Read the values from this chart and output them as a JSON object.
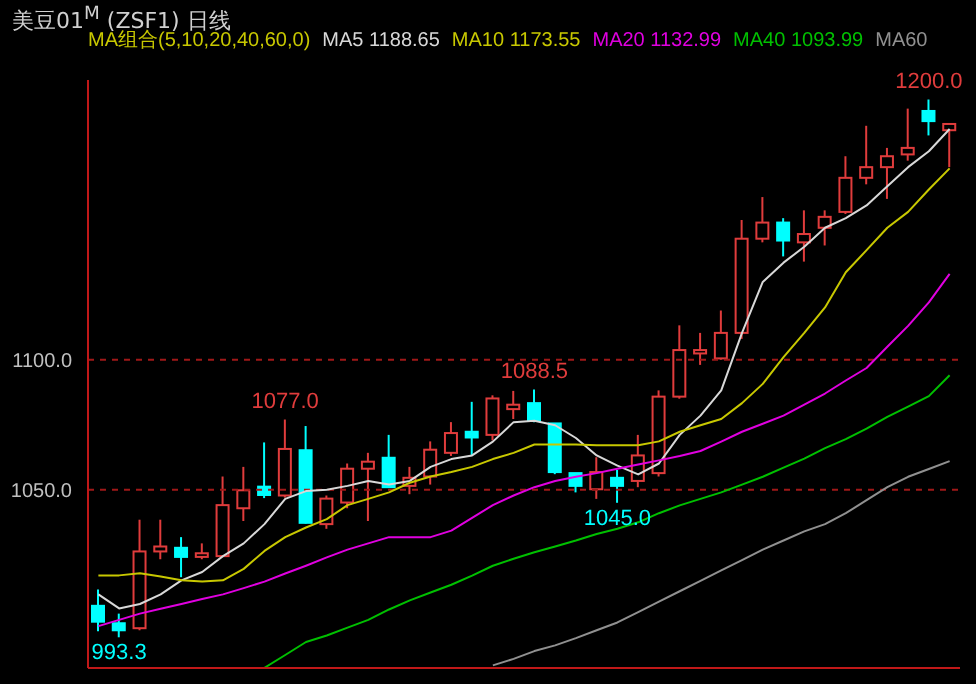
{
  "chart_data": {
    "type": "candlestick",
    "title": "美豆01$^{M}$ (ZSF1)  日线",
    "legend_title": "MA组合(5,10,20,40,60,0)",
    "categories": [
      null,
      null,
      null,
      null,
      null,
      null,
      null,
      null,
      null,
      null,
      null,
      null,
      null,
      null,
      null,
      null,
      null,
      null,
      null,
      null,
      null,
      null,
      null,
      null,
      null,
      null,
      null,
      null,
      null,
      null,
      null,
      null,
      null,
      null,
      null,
      null,
      null,
      null,
      null,
      null,
      null,
      null
    ],
    "colors": [
      "#00ffff",
      "#00ffff",
      "#e03c3c",
      "#e03c3c",
      "#00ffff",
      "#e03c3c",
      "#e03c3c",
      "#e03c3c",
      "#00ffff",
      "#e03c3c",
      "#00ffff",
      "#e03c3c",
      "#e03c3c",
      "#e03c3c",
      "#00ffff",
      "#e03c3c",
      "#e03c3c",
      "#e03c3c",
      "#00ffff",
      "#e03c3c",
      "#e03c3c",
      "#00ffff",
      "#00ffff",
      "#00ffff",
      "#e03c3c",
      "#00ffff",
      "#e03c3c",
      "#e03c3c",
      "#e03c3c",
      "#e03c3c",
      "#e03c3c",
      "#e03c3c",
      "#e03c3c",
      "#00ffff",
      "#e03c3c",
      "#e03c3c",
      "#e03c3c",
      "#e03c3c",
      "#e03c3c",
      "#e03c3c",
      "#00ffff",
      "#e03c3c"
    ],
    "ohlc": [
      [
        1005.4,
        1011.7,
        995.6,
        999.3
      ],
      [
        998.7,
        1002.4,
        993.3,
        996
      ],
      [
        996.8,
        1038.5,
        996,
        1026.3
      ],
      [
        1026.3,
        1038.5,
        1023.3,
        1028.2
      ],
      [
        1027.7,
        1031.8,
        1016.4,
        1024.2
      ],
      [
        1024.2,
        1029.4,
        1023.3,
        1025.6
      ],
      [
        1024.5,
        1055.1,
        1024.5,
        1044.1
      ],
      [
        1042.9,
        1058.8,
        1038,
        1049.8
      ],
      [
        1051.2,
        1068.2,
        1046.8,
        1048
      ],
      [
        1047.8,
        1077,
        1047,
        1065.7
      ],
      [
        1065.2,
        1074.5,
        1037,
        1037.3
      ],
      [
        1036.8,
        1047.8,
        1035,
        1046.6
      ],
      [
        1045.1,
        1060.1,
        1042.9,
        1058.1
      ],
      [
        1058.1,
        1064.2,
        1038,
        1060.8
      ],
      [
        1062.3,
        1071.1,
        1051,
        1051
      ],
      [
        1051.5,
        1058.8,
        1048.3,
        1054.6
      ],
      [
        1055.1,
        1068.6,
        1052,
        1065.4
      ],
      [
        1064.2,
        1076,
        1063,
        1071.8
      ],
      [
        1072.3,
        1083.8,
        1063.2,
        1070.1
      ],
      [
        1071.1,
        1086.3,
        1069,
        1085.1
      ],
      [
        1081,
        1088,
        1077.2,
        1082.7
      ],
      [
        1083.3,
        1088.5,
        1076,
        1076.5
      ],
      [
        1075.5,
        1075.5,
        1056,
        1056.8
      ],
      [
        1056.4,
        1056.4,
        1049,
        1051.5
      ],
      [
        1050.2,
        1062.5,
        1046.5,
        1056.8
      ],
      [
        1054.6,
        1057.6,
        1045,
        1051.5
      ],
      [
        1053.4,
        1071.1,
        1051,
        1063.2
      ],
      [
        1056.4,
        1088.2,
        1055.1,
        1085.8
      ],
      [
        1085.8,
        1113.2,
        1085,
        1103.7
      ],
      [
        1102.4,
        1110.3,
        1098,
        1103.7
      ],
      [
        1100.5,
        1118.9,
        1100,
        1110.3
      ],
      [
        1110.3,
        1153.7,
        1108,
        1146.5
      ],
      [
        1146.5,
        1162.5,
        1145.1,
        1152.7
      ],
      [
        1152.7,
        1154.4,
        1139.7,
        1145.8
      ],
      [
        1145.1,
        1157.4,
        1137.7,
        1148.3
      ],
      [
        1150.7,
        1157.4,
        1143.9,
        1154.9
      ],
      [
        1156.8,
        1178.2,
        1156,
        1169.9
      ],
      [
        1169.9,
        1189.9,
        1167.4,
        1174
      ],
      [
        1174,
        1181.4,
        1161.8,
        1178.2
      ],
      [
        1178.9,
        1196.5,
        1176.5,
        1181.4
      ],
      [
        1195.6,
        1200,
        1186.2,
        1191.7
      ],
      [
        1188.2,
        1190.6,
        1174,
        1190.6
      ]
    ],
    "series": [
      {
        "type": "line",
        "name": "MA5 1188.65",
        "color": "#d8d8d8",
        "values": [
          1009.8,
          1004.4,
          1006.1,
          1009.8,
          1015.2,
          1018.4,
          1024.5,
          1029.4,
          1036.8,
          1046.5,
          1049.5,
          1050,
          1051.5,
          1053.4,
          1052,
          1053.4,
          1058.8,
          1061.8,
          1063.2,
          1068.5,
          1076,
          1076.5,
          1074.8,
          1069.9,
          1063.2,
          1059.3,
          1055.9,
          1060.1,
          1071.1,
          1078.5,
          1088.2,
          1110.3,
          1129.9,
          1137.3,
          1143.4,
          1150.7,
          1154.4,
          1159.3,
          1166.7,
          1174,
          1180.1,
          1188.65
        ]
      },
      {
        "type": "line",
        "name": "MA10 1173.55",
        "color": "#c8c800",
        "values": [
          1017.1,
          1017.1,
          1017.9,
          1016.7,
          1015.2,
          1014.7,
          1015.2,
          1019.6,
          1026.5,
          1031.8,
          1035.5,
          1038.7,
          1044.1,
          1046.5,
          1049,
          1052.7,
          1055.1,
          1056.8,
          1058.8,
          1061.8,
          1064.2,
          1067.4,
          1067.4,
          1067.4,
          1067.1,
          1067.1,
          1067.1,
          1068.6,
          1072.3,
          1074.8,
          1077.2,
          1083.3,
          1090.7,
          1101,
          1110.3,
          1120.1,
          1133.6,
          1142.1,
          1150.7,
          1156.8,
          1165.4,
          1173.55
        ]
      },
      {
        "type": "line",
        "name": "MA20 1132.99",
        "color": "#e000e0",
        "values": [
          997.6,
          1000,
          1002.4,
          1004.3,
          1006.1,
          1008,
          1009.8,
          1012.2,
          1014.7,
          1017.8,
          1020.8,
          1024,
          1027,
          1029.4,
          1031.8,
          1031.8,
          1031.8,
          1034.3,
          1039.2,
          1044.1,
          1047.8,
          1051,
          1053.4,
          1055,
          1056.4,
          1058.1,
          1059.7,
          1061.3,
          1063,
          1064.9,
          1068.5,
          1072.3,
          1075.4,
          1078.5,
          1082.7,
          1087,
          1092,
          1096.8,
          1105,
          1113,
          1122,
          1132.99
        ]
      },
      {
        "type": "line",
        "name": "MA40 1093.99",
        "color": "#00c000",
        "values": [
          null,
          null,
          null,
          null,
          null,
          null,
          null,
          null,
          981.6,
          986.5,
          991.5,
          994,
          997,
          1000,
          1004,
          1007.5,
          1010.5,
          1013.5,
          1017,
          1020.8,
          1023.5,
          1026,
          1028.2,
          1030.5,
          1033,
          1035,
          1037.5,
          1041,
          1044,
          1046.5,
          1049,
          1052,
          1055,
          1058.5,
          1062,
          1066,
          1069.5,
          1073.5,
          1078,
          1082,
          1086,
          1093.99
        ]
      },
      {
        "type": "line",
        "name": "MA60",
        "color": "#909090",
        "values": [
          null,
          null,
          null,
          null,
          null,
          null,
          null,
          null,
          null,
          null,
          null,
          null,
          null,
          null,
          null,
          null,
          null,
          null,
          null,
          982.5,
          985,
          988,
          990.2,
          993,
          996,
          999,
          1003,
          1007,
          1011,
          1015,
          1019,
          1023,
          1027,
          1030.5,
          1034,
          1036.8,
          1041,
          1046,
          1051,
          1055,
          1058,
          1061
        ]
      }
    ],
    "ylim": [
      981.5,
      1207.5
    ],
    "yticks": [
      {
        "value": 1050,
        "label": "1050.0"
      },
      {
        "value": 1100,
        "label": "1100.0"
      }
    ],
    "grid": "y",
    "legend": "top",
    "tick_labels": "y",
    "annotations": [
      {
        "text": "993.3",
        "y": 993.3
      },
      {
        "text": "1077.0",
        "y": 1077
      },
      {
        "text": "1088.5",
        "y": 1088.5
      },
      {
        "text": "1045.0",
        "y": 1045
      },
      {
        "text": "1200.0",
        "y": 1200
      }
    ]
  }
}
